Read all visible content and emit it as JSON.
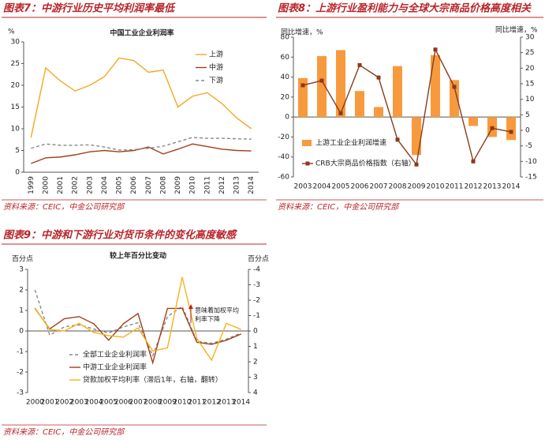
{
  "figures": [
    {
      "title": "图表7：中游行业历史平均利润率最低",
      "source": "资料来源：CEIC，中金公司研究部"
    },
    {
      "title": "图表8：上游行业盈利能力与全球大宗商品价格高度相关",
      "source": "资料来源：CEIC，中金公司研究部"
    },
    {
      "title": "图表9：中游和下游行业对货币条件的变化高度敏感",
      "source": "资料来源：CEIC，中金公司研究部"
    }
  ],
  "chart_data": [
    {
      "type": "line",
      "title": "中国工业企业利润率",
      "ylabel": "%",
      "categories": [
        "1999",
        "2000",
        "2001",
        "2002",
        "2003",
        "2004",
        "2005",
        "2006",
        "2007",
        "2008",
        "2009",
        "2010",
        "2011",
        "2012",
        "2013",
        "2014"
      ],
      "ylim": [
        0,
        30
      ],
      "yticks": [
        0,
        5,
        10,
        15,
        20,
        25,
        30
      ],
      "series": [
        {
          "name": "上游",
          "color": "#f5a623",
          "values": [
            8,
            24,
            21,
            18.7,
            20,
            22,
            26.3,
            25.7,
            23,
            23.5,
            15,
            17.5,
            18.3,
            15.8,
            12.5,
            10
          ]
        },
        {
          "name": "中游",
          "color": "#a0401a",
          "values": [
            2,
            3.3,
            3.5,
            4,
            4.7,
            5,
            4.7,
            5,
            5.8,
            4.2,
            5.3,
            6.5,
            5.9,
            5.3,
            5,
            4.9
          ]
        },
        {
          "name": "下游",
          "color": "#888888",
          "dash": true,
          "values": [
            5.5,
            6.5,
            6.2,
            6.2,
            6.3,
            5.8,
            5.1,
            5.2,
            5.5,
            6,
            7,
            8,
            7.8,
            7.8,
            7.7,
            7.6
          ]
        }
      ]
    },
    {
      "type": "bar",
      "ylabel": "同比增速，%",
      "y2label": "同比增速，%",
      "categories": [
        "2003",
        "2004",
        "2005",
        "2006",
        "2007",
        "2008",
        "2009",
        "2010",
        "2011",
        "2012",
        "2013",
        "2014"
      ],
      "ylim": [
        -60,
        80
      ],
      "yticks": [
        -60,
        -40,
        -20,
        0,
        20,
        40,
        60,
        80
      ],
      "y2lim": [
        -15,
        30
      ],
      "y2ticks": [
        -15,
        -10,
        -5,
        0,
        5,
        10,
        15,
        20,
        25,
        30
      ],
      "series": [
        {
          "name": "上游工业企业利润增速",
          "color": "#f79a3e",
          "values": [
            39,
            61,
            67,
            26,
            10,
            51,
            -38,
            62,
            37,
            -9,
            -20,
            -23
          ]
        },
        {
          "name": "CRB大宗商品价格指数（右轴）",
          "color": "#8b3a1a",
          "type": "line",
          "marker": "square",
          "axis": "y2",
          "values": [
            14.5,
            16,
            5.5,
            21,
            17,
            -3,
            -11,
            26,
            14,
            -10,
            0.7,
            -0.5
          ]
        }
      ]
    },
    {
      "type": "line",
      "title": "较上年百分比变动",
      "ylabel": "百分点",
      "y2label": "百分点",
      "categories": [
        "2000",
        "2001",
        "2002",
        "2003",
        "2004",
        "2005",
        "2006",
        "2007",
        "2008",
        "2009",
        "2010",
        "2011",
        "2012",
        "2013",
        "2014"
      ],
      "ylim": [
        -3,
        3
      ],
      "yticks": [
        -3,
        -2,
        -1,
        0,
        1,
        2,
        3
      ],
      "y2lim": [
        -4,
        4
      ],
      "y2_inverted": true,
      "y2ticks": [
        -4,
        -3,
        -2,
        -1,
        0,
        1,
        2,
        3,
        4
      ],
      "annotation": [
        "意味着加权平均",
        "利率下降"
      ],
      "annotation_color": "#b8242a",
      "series": [
        {
          "name": "全部工业企业利润率",
          "color": "#888888",
          "dash": true,
          "values": [
            2,
            -0.2,
            0.2,
            0.3,
            0.1,
            -0.1,
            0.2,
            0.4,
            -1.2,
            0.7,
            1.2,
            -0.5,
            -0.6,
            -0.4,
            -0.1
          ]
        },
        {
          "name": "中游工业企业利润率",
          "color": "#a0401a",
          "values": [
            1.1,
            0.1,
            0.6,
            0.7,
            0.35,
            -0.45,
            0.35,
            0.85,
            -1.55,
            1.1,
            1.1,
            -0.55,
            -0.65,
            -0.45,
            -0.15
          ]
        },
        {
          "name": "贷款加权平均利率（滞后1年，右轴，翻转）",
          "color": "#f5b21b",
          "axis": "y2",
          "values": [
            -1.5,
            -0.1,
            0,
            -0.5,
            0.1,
            0.3,
            0.4,
            -0.2,
            1.3,
            1.1,
            -3.5,
            0.5,
            1.9,
            -0.5,
            -0.1
          ]
        }
      ]
    }
  ]
}
